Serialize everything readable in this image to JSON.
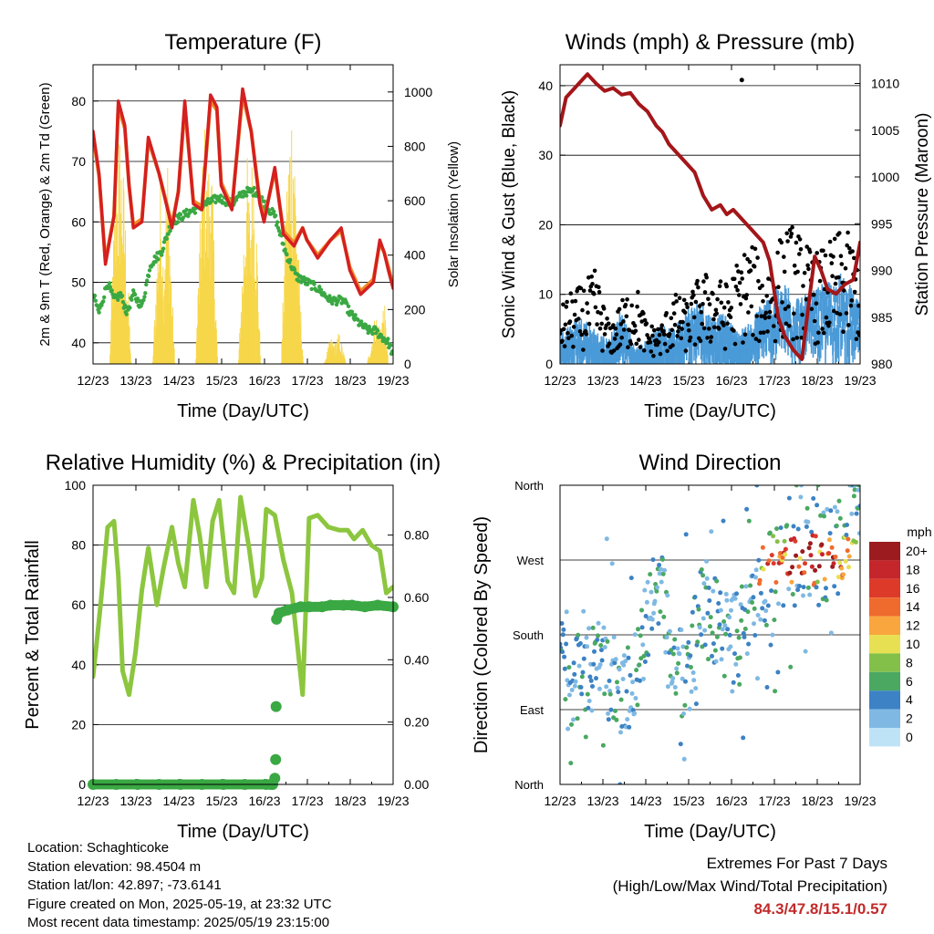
{
  "colors": {
    "temp_2m": "#d42020",
    "temp_9m": "#ef8a28",
    "dewpoint": "#3aa843",
    "solar": "#f7d74a",
    "wind": "#4a9ad8",
    "gust": "#000000",
    "pressure": "#a3161a",
    "rh": "#8cc63f",
    "precip": "#3aa843",
    "extremes": "#c22a2a"
  },
  "panels": {
    "temperature": {
      "title": "Temperature (F)",
      "xlabel": "Time (Day/UTC)",
      "ylabel_left": "2m & 9m T (Red, Orange) & 2m Td (Green)",
      "ylabel_right": "Solar Insolation (Yellow)"
    },
    "winds": {
      "title": "Winds (mph) & Pressure (mb)",
      "xlabel": "Time (Day/UTC)",
      "ylabel_left": "Sonic Wind & Gust (Blue, Black)",
      "ylabel_right": "Station Pressure (Maroon)"
    },
    "humidity": {
      "title": "Relative Humidity (%) & Precipitation (in)",
      "xlabel": "Time (Day/UTC)",
      "ylabel_left": "Percent & Total Rainfall"
    },
    "direction": {
      "title": "Wind Direction",
      "xlabel": "Time (Day/UTC)",
      "ylabel_left": "Direction (Colored By Speed)",
      "legend_title": "mph"
    }
  },
  "chart_data": [
    {
      "type": "line",
      "title": "Temperature (F)",
      "xlabel": "Time (Day/UTC)",
      "ylabel": "2m & 9m T (Red, Orange) & 2m Td (Green)",
      "ylabel_right": "Solar Insolation (Yellow)",
      "x_ticks": [
        "12/23",
        "13/23",
        "14/23",
        "15/23",
        "16/23",
        "17/23",
        "18/23",
        "19/23"
      ],
      "xlim": [
        12.96,
        19.96
      ],
      "ylim": [
        36.5,
        86
      ],
      "y_ticks": [
        40,
        50,
        60,
        70,
        80
      ],
      "ylim_right": [
        0,
        1100
      ],
      "y_ticks_right": [
        0,
        200,
        400,
        600,
        800,
        1000
      ],
      "grid": true,
      "series": [
        {
          "axis": "left",
          "color": "temp_2m",
          "x": [
            12.96,
            13.1,
            13.25,
            13.45,
            13.55,
            13.7,
            13.8,
            13.9,
            14.1,
            14.25,
            14.5,
            14.8,
            14.95,
            15.1,
            15.3,
            15.5,
            15.7,
            15.85,
            15.95,
            16.2,
            16.45,
            16.65,
            16.85,
            16.95,
            17.2,
            17.4,
            17.65,
            17.85,
            17.95,
            18.2,
            18.5,
            18.75,
            18.95,
            19.2,
            19.5,
            19.65,
            19.75,
            19.85,
            19.96
          ],
          "y": [
            75,
            68,
            53,
            61,
            80,
            76,
            66,
            59,
            60,
            74,
            68,
            59,
            65,
            80,
            63,
            62,
            81,
            79,
            66,
            62,
            82,
            75,
            63,
            60,
            69,
            58,
            56,
            59,
            57,
            54,
            57,
            59,
            52,
            48,
            50,
            57,
            55,
            52,
            49
          ]
        },
        {
          "axis": "left",
          "color": "temp_9m",
          "x": [
            12.96,
            13.1,
            13.25,
            13.45,
            13.55,
            13.7,
            13.8,
            13.9,
            14.1,
            14.25,
            14.5,
            14.8,
            14.95,
            15.1,
            15.3,
            15.5,
            15.7,
            15.85,
            15.95,
            16.2,
            16.45,
            16.65,
            16.85,
            16.95,
            17.2,
            17.4,
            17.65,
            17.85,
            17.95,
            18.2,
            18.5,
            18.75,
            18.95,
            19.2,
            19.5,
            19.65,
            19.75,
            19.85,
            19.96
          ],
          "y": [
            74.5,
            67.5,
            53.5,
            61,
            79,
            75.5,
            66,
            59.5,
            60.5,
            73.5,
            68,
            59.5,
            65,
            79,
            63.5,
            62.5,
            80,
            78.5,
            66.5,
            62.5,
            81,
            75,
            63.5,
            60.5,
            68.5,
            58.5,
            56.5,
            59,
            57,
            54.5,
            57,
            58.5,
            52.5,
            48.5,
            50.5,
            56.5,
            55,
            52.5,
            49.5
          ]
        },
        {
          "axis": "left",
          "color": "dewpoint",
          "x": [
            12.96,
            13.1,
            13.3,
            13.45,
            13.6,
            13.75,
            13.9,
            14.1,
            14.3,
            14.55,
            14.8,
            15.05,
            15.3,
            15.6,
            15.9,
            16.2,
            16.5,
            16.8,
            16.95,
            17.2,
            17.45,
            17.7,
            17.95,
            18.2,
            18.5,
            18.8,
            18.95,
            19.2,
            19.4,
            19.55,
            19.7,
            19.85,
            19.96
          ],
          "y": [
            48,
            45,
            50,
            47,
            48,
            45,
            48,
            46,
            53,
            55,
            60,
            61,
            62,
            63,
            64,
            63,
            65,
            65,
            63,
            61,
            55,
            51,
            50,
            49,
            47,
            47,
            45,
            43,
            42,
            42,
            41,
            40,
            38
          ]
        },
        {
          "axis": "right",
          "color": "solar",
          "x": [
            12.96,
            13.35,
            13.4,
            13.5,
            13.58,
            13.68,
            13.78,
            13.85,
            14.35,
            14.45,
            14.55,
            14.6,
            14.7,
            14.8,
            14.87,
            15.35,
            15.45,
            15.55,
            15.62,
            15.7,
            15.78,
            15.87,
            16.35,
            16.45,
            16.55,
            16.62,
            16.7,
            16.8,
            16.87,
            17.35,
            17.45,
            17.55,
            17.62,
            17.7,
            17.78,
            17.87,
            18.35,
            18.5,
            18.6,
            18.7,
            18.87,
            19.35,
            19.45,
            19.55,
            19.65,
            19.75,
            19.85,
            19.96
          ],
          "y": [
            0,
            0,
            350,
            700,
            900,
            700,
            300,
            0,
            0,
            400,
            750,
            400,
            800,
            300,
            0,
            0,
            500,
            950,
            700,
            900,
            500,
            0,
            0,
            400,
            800,
            600,
            900,
            400,
            0,
            0,
            600,
            950,
            1050,
            700,
            300,
            0,
            0,
            100,
            80,
            120,
            0,
            0,
            80,
            200,
            150,
            250,
            0,
            0
          ]
        }
      ]
    },
    {
      "type": "scatter",
      "title": "Winds (mph) & Pressure (mb)",
      "xlabel": "Time (Day/UTC)",
      "ylabel": "Sonic Wind & Gust (Blue, Black)",
      "ylabel_right": "Station Pressure (Maroon)",
      "x_ticks": [
        "12/23",
        "13/23",
        "14/23",
        "15/23",
        "16/23",
        "17/23",
        "18/23",
        "19/23"
      ],
      "xlim": [
        12.96,
        19.96
      ],
      "ylim": [
        0,
        43
      ],
      "y_ticks": [
        0,
        10,
        20,
        30,
        40
      ],
      "ylim_right": [
        980,
        1012
      ],
      "y_ticks_right": [
        980,
        985,
        990,
        995,
        1000,
        1005,
        1010
      ],
      "grid": true,
      "series": [
        {
          "name": "wind_envelope",
          "axis": "left",
          "color": "wind",
          "x": [
            12.96,
            13.2,
            13.5,
            13.8,
            14.1,
            14.4,
            14.7,
            15.0,
            15.3,
            15.6,
            15.9,
            16.2,
            16.5,
            16.8,
            17.1,
            17.4,
            17.7,
            18.0,
            18.3,
            18.6,
            18.9,
            19.2,
            19.5,
            19.8,
            19.96
          ],
          "y": [
            4,
            5,
            6,
            4,
            3,
            7,
            2,
            3,
            5,
            4,
            7,
            8,
            6,
            6,
            4,
            5,
            8,
            9,
            10,
            8,
            9,
            10,
            11,
            9,
            7
          ]
        },
        {
          "name": "gust_envelope",
          "axis": "left",
          "color": "gust",
          "x": [
            12.96,
            13.2,
            13.5,
            13.8,
            14.1,
            14.4,
            14.7,
            15.0,
            15.3,
            15.6,
            15.9,
            16.2,
            16.5,
            16.8,
            17.1,
            17.4,
            17.7,
            18.0,
            18.3,
            18.6,
            18.9,
            19.2,
            19.5,
            19.8,
            19.96
          ],
          "y": [
            7,
            9,
            10,
            12,
            5,
            8,
            11,
            5,
            5,
            9,
            8,
            11,
            12,
            10,
            13,
            16,
            12,
            15,
            18,
            16,
            14,
            15,
            17,
            16,
            13
          ]
        },
        {
          "name": "pressure",
          "axis": "right",
          "color": "pressure",
          "x": [
            12.96,
            13.1,
            13.3,
            13.5,
            13.6,
            13.8,
            14.0,
            14.2,
            14.4,
            14.6,
            14.8,
            15.0,
            15.2,
            15.35,
            15.5,
            15.7,
            15.9,
            16.1,
            16.3,
            16.5,
            16.7,
            16.85,
            17.0,
            17.2,
            17.5,
            17.7,
            17.85,
            17.95,
            18.05,
            18.2,
            18.4,
            18.6,
            18.75,
            18.9,
            19.05,
            19.2,
            19.4,
            19.6,
            19.8,
            19.96
          ],
          "y": [
            1005.5,
            1008.5,
            1009.5,
            1010.5,
            1011.0,
            1010.0,
            1009.2,
            1009.5,
            1008.8,
            1009.0,
            1007.8,
            1007.0,
            1005.5,
            1004.8,
            1003.5,
            1002.5,
            1001.5,
            1000.5,
            998.0,
            996.5,
            997.0,
            996.0,
            996.5,
            995.5,
            994.0,
            993.0,
            991.0,
            988.0,
            985.0,
            983.0,
            981.5,
            980.5,
            986.0,
            991.5,
            990.0,
            988.0,
            987.5,
            988.5,
            989.0,
            993.0
          ]
        },
        {
          "name": "max_gust",
          "axis": "left",
          "color": "gust",
          "x": [
            17.2
          ],
          "y": [
            40.8
          ]
        }
      ]
    },
    {
      "type": "line",
      "title": "Relative Humidity (%) & Precipitation (in)",
      "xlabel": "Time (Day/UTC)",
      "ylabel": "Percent & Total Rainfall",
      "x_ticks": [
        "12/23",
        "13/23",
        "14/23",
        "15/23",
        "16/23",
        "17/23",
        "18/23",
        "19/23"
      ],
      "xlim": [
        12.96,
        19.96
      ],
      "ylim": [
        0,
        100
      ],
      "y_ticks": [
        0,
        20,
        40,
        60,
        80,
        100
      ],
      "ylim_right": [
        0,
        0.96
      ],
      "y_ticks_right": [
        "0.00",
        "0.20",
        "0.40",
        "0.60",
        "0.80"
      ],
      "grid": true,
      "series": [
        {
          "axis": "left",
          "color": "rh",
          "x": [
            12.96,
            13.05,
            13.15,
            13.3,
            13.45,
            13.55,
            13.65,
            13.8,
            13.95,
            14.1,
            14.25,
            14.45,
            14.6,
            14.8,
            14.95,
            15.1,
            15.3,
            15.45,
            15.6,
            15.75,
            15.9,
            16.1,
            16.25,
            16.4,
            16.6,
            16.75,
            16.9,
            17.0,
            17.2,
            17.4,
            17.6,
            17.85,
            18.0,
            18.2,
            18.45,
            18.7,
            18.9,
            19.05,
            19.25,
            19.45,
            19.65,
            19.8,
            19.96
          ],
          "y": [
            36,
            48,
            62,
            86,
            88,
            70,
            38,
            30,
            44,
            65,
            79,
            60,
            72,
            86,
            74,
            66,
            95,
            83,
            66,
            88,
            95,
            68,
            64,
            96,
            79,
            63,
            69,
            92,
            90,
            75,
            64,
            30,
            89,
            90,
            86,
            85,
            85,
            82,
            85,
            80,
            78,
            64,
            66
          ]
        },
        {
          "name": "precip_in",
          "axis": "right",
          "color": "precip",
          "x": [
            12.96,
            13.5,
            14.0,
            14.5,
            15.0,
            15.5,
            16.0,
            16.5,
            17.0,
            17.1,
            17.15,
            17.2,
            17.22,
            17.23,
            17.24,
            17.3,
            17.5,
            17.8,
            18.0,
            18.3,
            18.5,
            18.8,
            19.0,
            19.3,
            19.6,
            19.96
          ],
          "y": [
            0,
            0,
            0,
            0,
            0,
            0,
            0,
            0,
            0,
            0,
            0,
            0.02,
            0.08,
            0.25,
            0.53,
            0.55,
            0.56,
            0.57,
            0.57,
            0.57,
            0.575,
            0.575,
            0.575,
            0.57,
            0.575,
            0.57
          ]
        }
      ]
    },
    {
      "type": "scatter",
      "title": "Wind Direction",
      "xlabel": "Time (Day/UTC)",
      "ylabel": "Direction (Colored By Speed)",
      "x_ticks": [
        "12/23",
        "13/23",
        "14/23",
        "15/23",
        "16/23",
        "17/23",
        "18/23",
        "19/23"
      ],
      "xlim": [
        12.96,
        19.96
      ],
      "y_ticks": [
        "North",
        "East",
        "South",
        "West",
        "North"
      ],
      "ylim": [
        0,
        360
      ],
      "grid": true,
      "legend": {
        "title": "mph",
        "position": "right",
        "labels": [
          "20+",
          "18",
          "16",
          "14",
          "12",
          "10",
          "8",
          "6",
          "4",
          "2",
          "0"
        ],
        "colors": [
          "#9b1b1e",
          "#c5262b",
          "#dd3a2a",
          "#ef6a2d",
          "#f9a63f",
          "#e8e053",
          "#83c04a",
          "#4aa861",
          "#3c82c4",
          "#7fb9e3",
          "#bfe3f6"
        ]
      },
      "series": [
        {
          "name": "direction_trend",
          "x": [
            12.96,
            13.3,
            13.6,
            14.0,
            14.4,
            14.7,
            15.0,
            15.3,
            15.6,
            15.9,
            16.2,
            16.5,
            16.8,
            17.0,
            17.3,
            17.6,
            17.9,
            18.2,
            18.5,
            18.8,
            19.0,
            19.3,
            19.6,
            19.96
          ],
          "y": [
            150,
            120,
            140,
            150,
            100,
            130,
            200,
            250,
            150,
            120,
            210,
            200,
            180,
            170,
            200,
            240,
            250,
            260,
            270,
            280,
            270,
            280,
            300,
            350
          ]
        }
      ]
    }
  ],
  "info": {
    "location": "Location: Schaghticoke",
    "elevation": "Station elevation: 98.4504 m",
    "latlon": "Station lat/lon: 42.897; -73.6141",
    "created": "Figure created on Mon, 2025-05-19, at 23:32 UTC",
    "timestamp": "Most recent data timestamp: 2025/05/19 23:15:00"
  },
  "extremes": {
    "title": "Extremes For Past 7 Days",
    "subtitle": "(High/Low/Max Wind/Total Precipitation)",
    "values": "84.3/47.8/15.1/0.57"
  }
}
